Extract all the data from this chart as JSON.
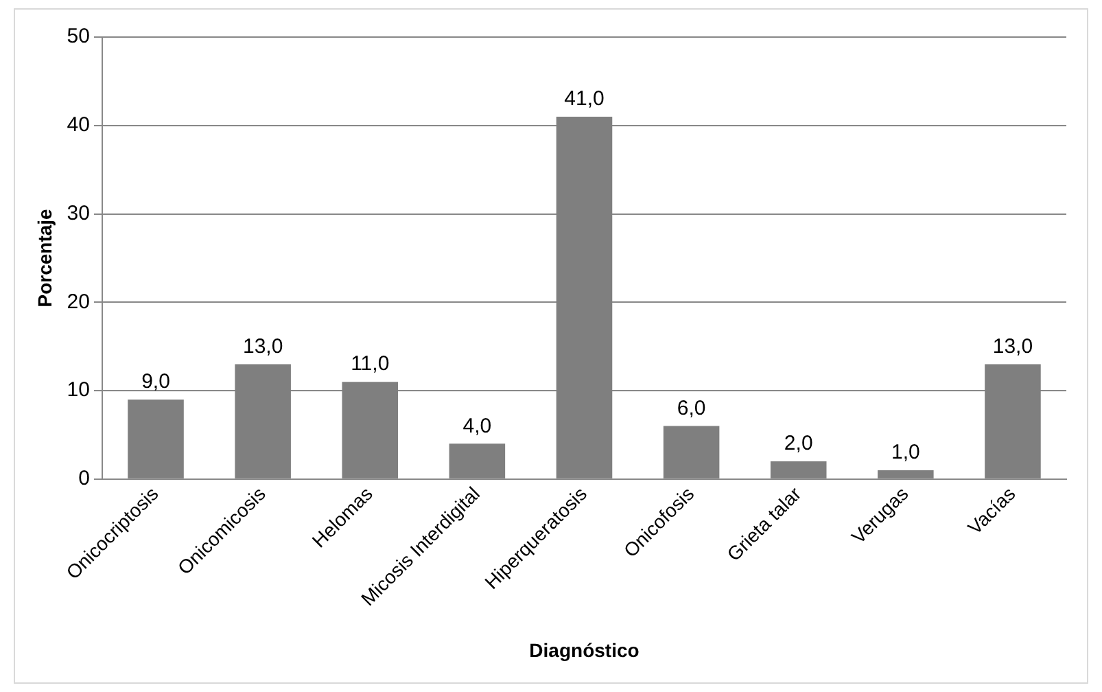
{
  "chart_data": {
    "type": "bar",
    "xlabel": "Diagnóstico",
    "ylabel": "Porcentaje",
    "categories": [
      "Onicocriptosis",
      "Onicomicosis",
      "Helomas",
      "Micosis Interdigital",
      "Hiperqueratosis",
      "Onicofosis",
      "Grieta talar",
      "Verugas",
      "Vacías"
    ],
    "values": [
      9,
      13,
      11,
      4,
      41,
      6,
      2,
      1,
      13
    ],
    "value_labels": [
      "9,0",
      "13,0",
      "11,0",
      "4,0",
      "41,0",
      "6,0",
      "2,0",
      "1,0",
      "13,0"
    ],
    "color": "#7f7f7f",
    "ylim": [
      0,
      50
    ],
    "yticks": [
      0,
      10,
      20,
      30,
      40,
      50
    ],
    "grid": "y",
    "legend": false
  }
}
